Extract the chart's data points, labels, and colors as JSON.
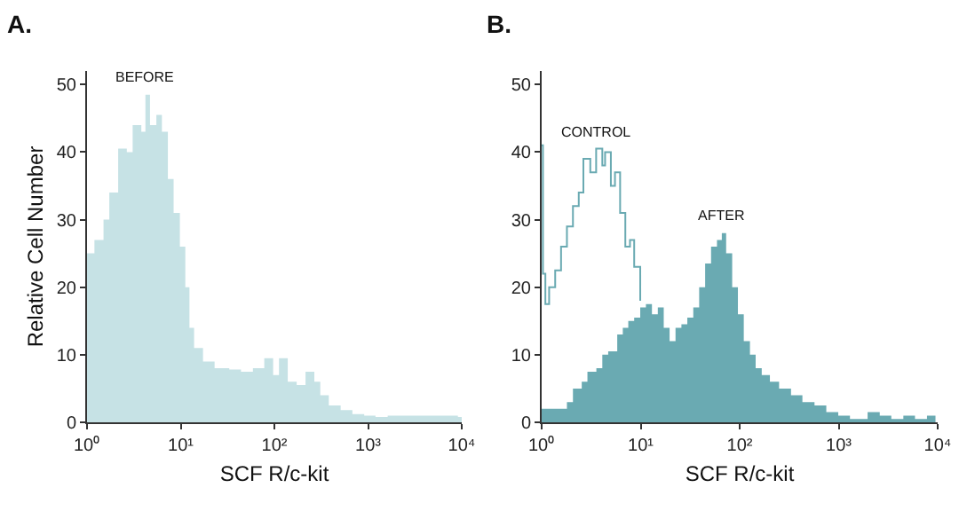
{
  "chart_data": [
    {
      "type": "area",
      "title": "A.",
      "xlabel": "SCF R/c-kit",
      "ylabel": "Relative Cell Number",
      "log": "x",
      "xlim": [
        1,
        10000
      ],
      "ylim": [
        0,
        52
      ],
      "xticks": [
        {
          "value": 1,
          "label": "10⁰"
        },
        {
          "value": 10,
          "label": "10¹"
        },
        {
          "value": 100,
          "label": "10²"
        },
        {
          "value": 1000,
          "label": "10³"
        },
        {
          "value": 10000,
          "label": "10⁴"
        }
      ],
      "yticks": [
        0,
        10,
        20,
        30,
        40,
        50
      ],
      "series": [
        {
          "name": "BEFORE",
          "color": "#c6e2e5",
          "x": [
            1,
            1.2,
            1.5,
            1.73,
            2.15,
            2.66,
            3.07,
            3.8,
            4.2,
            4.7,
            5.5,
            6.3,
            7.3,
            8.4,
            9.8,
            11.2,
            12.4,
            13.9,
            17.3,
            23,
            33,
            44,
            59,
            78,
            97,
            112,
            139,
            173,
            215,
            267,
            309,
            381,
            510,
            680,
            910,
            1200,
            1620,
            2880,
            5130,
            9100,
            10000
          ],
          "values": [
            25,
            27,
            30,
            34,
            40.5,
            40,
            44,
            43,
            48.5,
            44,
            45.5,
            43,
            36,
            31,
            26,
            20,
            14,
            11,
            9,
            8,
            7.8,
            7.5,
            8,
            9.5,
            7,
            9.5,
            6,
            5.5,
            7.5,
            6,
            4,
            2.5,
            1.8,
            1.2,
            1,
            0.8,
            1,
            1,
            1,
            0.8,
            0
          ]
        }
      ],
      "legend": false,
      "grid": false
    },
    {
      "type": "area",
      "title": "B.",
      "xlabel": "SCF R/c-kit",
      "log": "x",
      "xlim": [
        1,
        10000
      ],
      "ylim": [
        0,
        52
      ],
      "xticks": [
        {
          "value": 1,
          "label": "10⁰"
        },
        {
          "value": 10,
          "label": "10¹"
        },
        {
          "value": 100,
          "label": "10²"
        },
        {
          "value": 1000,
          "label": "10³"
        },
        {
          "value": 10000,
          "label": "10⁴"
        }
      ],
      "yticks": [
        0,
        10,
        20,
        30,
        40,
        50
      ],
      "series": [
        {
          "name": "AFTER",
          "color": "#6aaab2",
          "x": [
            1,
            1.57,
            1.8,
            2.07,
            2.54,
            2.9,
            3.57,
            4.1,
            4.7,
            5.8,
            6.6,
            7.5,
            8.6,
            9.9,
            11.3,
            13,
            14.9,
            17.1,
            19.6,
            22.5,
            25.8,
            29.6,
            34,
            39,
            44.8,
            51.4,
            59,
            66,
            73,
            84,
            96,
            110,
            127,
            145,
            167,
            202,
            250,
            330,
            430,
            570,
            750,
            990,
            1300,
            1960,
            2600,
            3400,
            4500,
            5900,
            7800,
            9500
          ],
          "values": [
            2,
            2,
            3,
            5,
            6,
            7.5,
            8,
            10,
            10.5,
            13,
            14,
            15,
            15.5,
            17,
            17.5,
            16,
            17,
            14,
            12,
            14,
            14.5,
            15.5,
            17,
            20,
            23.5,
            26,
            27,
            28,
            25,
            20,
            16,
            12,
            10,
            8,
            7,
            6,
            5,
            4,
            3,
            2.5,
            1.5,
            1,
            0.5,
            1.5,
            1,
            0.5,
            1,
            0.5,
            1,
            0
          ]
        },
        {
          "name": "CONTROL",
          "type": "step",
          "color": "#6aaab2",
          "x": [
            1,
            1.03,
            1.09,
            1.19,
            1.37,
            1.57,
            1.8,
            2.07,
            2.37,
            2.64,
            3.1,
            3.55,
            4.1,
            4.37,
            5,
            5.5,
            6.2,
            7,
            7.8,
            8.6,
            9.9
          ],
          "values": [
            41,
            22,
            17.5,
            20,
            22.5,
            26,
            29,
            32,
            34,
            39,
            37,
            40.5,
            38,
            40,
            35,
            37,
            31,
            26,
            27,
            23,
            18
          ]
        }
      ],
      "legend": false,
      "grid": false
    }
  ]
}
